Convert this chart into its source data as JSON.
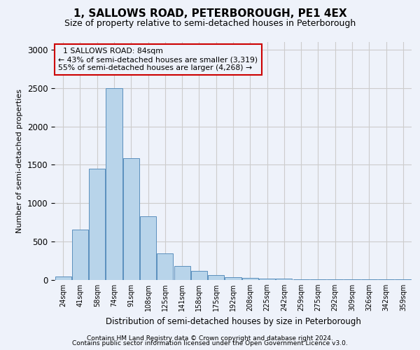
{
  "title": "1, SALLOWS ROAD, PETERBOROUGH, PE1 4EX",
  "subtitle": "Size of property relative to semi-detached houses in Peterborough",
  "xlabel": "Distribution of semi-detached houses by size in Peterborough",
  "ylabel": "Number of semi-detached properties",
  "footer_line1": "Contains HM Land Registry data © Crown copyright and database right 2024.",
  "footer_line2": "Contains public sector information licensed under the Open Government Licence v3.0.",
  "annotation_title": "1 SALLOWS ROAD: 84sqm",
  "annotation_line1": "← 43% of semi-detached houses are smaller (3,319)",
  "annotation_line2": "55% of semi-detached houses are larger (4,268) →",
  "bar_labels": [
    "24sqm",
    "41sqm",
    "58sqm",
    "74sqm",
    "91sqm",
    "108sqm",
    "125sqm",
    "141sqm",
    "158sqm",
    "175sqm",
    "192sqm",
    "208sqm",
    "225sqm",
    "242sqm",
    "259sqm",
    "275sqm",
    "292sqm",
    "309sqm",
    "326sqm",
    "342sqm",
    "359sqm"
  ],
  "bar_values": [
    50,
    660,
    1450,
    2500,
    1590,
    830,
    350,
    185,
    120,
    60,
    40,
    30,
    20,
    20,
    10,
    10,
    5,
    5,
    5,
    5,
    5
  ],
  "bar_color": "#b8d4ea",
  "bar_edge_color": "#5a8fbd",
  "annotation_box_color": "#cc0000",
  "ylim": [
    0,
    3100
  ],
  "grid_color": "#cccccc",
  "background_color": "#eef2fa",
  "title_fontsize": 11,
  "subtitle_fontsize": 9
}
